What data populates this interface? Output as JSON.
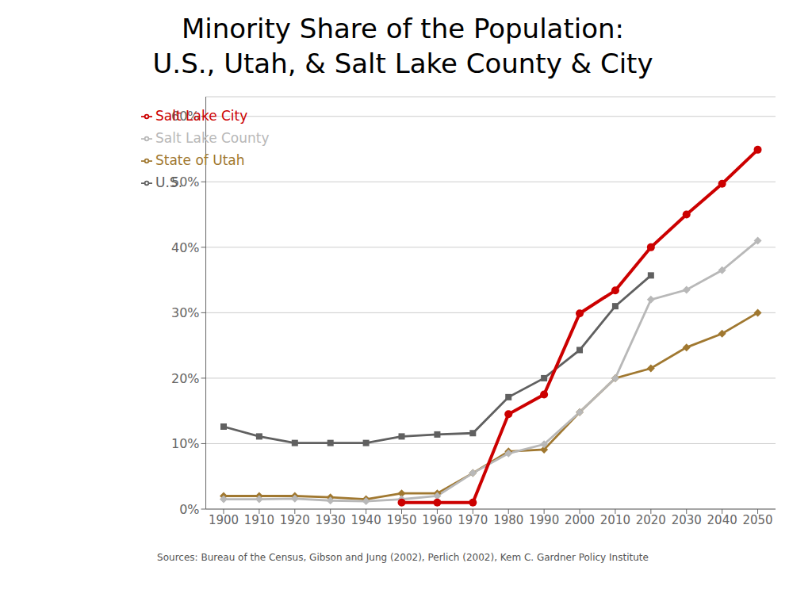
{
  "chart_data": {
    "type": "line",
    "title": "Minority Share of the Population:",
    "subtitle": "U.S., Utah, & Salt Lake County & City",
    "annotations": [
      "Sources: Bureau of the Census, Gibson and Jung (2002), Perlich (2002), Kem C. Gardner Policy Institute"
    ],
    "x": [
      1900,
      1910,
      1920,
      1930,
      1940,
      1950,
      1960,
      1970,
      1980,
      1990,
      2000,
      2010,
      2020,
      2030,
      2040,
      2050
    ],
    "series": [
      {
        "name": "U.S.",
        "color": "#606060",
        "marker": "square",
        "values": [
          0.126,
          0.111,
          0.101,
          0.101,
          0.101,
          0.111,
          0.114,
          0.116,
          0.171,
          0.2,
          0.243,
          0.31,
          0.357,
          null,
          null,
          null
        ]
      },
      {
        "name": "State of Utah",
        "color": "#a07830",
        "marker": "diamond",
        "values": [
          0.02,
          0.02,
          0.02,
          0.018,
          0.015,
          0.024,
          0.024,
          0.055,
          0.088,
          0.091,
          0.148,
          0.2,
          0.215,
          0.247,
          0.268,
          0.3
        ]
      },
      {
        "name": "Salt Lake County",
        "color": "#b8b8b8",
        "marker": "diamond",
        "values": [
          0.015,
          0.015,
          0.016,
          0.013,
          0.012,
          0.015,
          0.02,
          0.055,
          0.085,
          0.099,
          0.148,
          0.2,
          0.32,
          0.335,
          0.365,
          0.41
        ]
      },
      {
        "name": "Salt Lake City",
        "color": "#cc0000",
        "marker": "circle",
        "values": [
          null,
          null,
          null,
          null,
          null,
          0.01,
          0.01,
          0.01,
          0.145,
          0.175,
          0.299,
          0.334,
          0.4,
          0.45,
          0.497,
          0.549
        ]
      }
    ],
    "xlim": [
      1895,
      2055
    ],
    "xticks": [
      1900,
      1910,
      1920,
      1930,
      1940,
      1950,
      1960,
      1970,
      1980,
      1990,
      2000,
      2010,
      2020,
      2030,
      2040,
      2050
    ],
    "ylim": [
      0,
      0.63
    ],
    "yticks": [
      {
        "value": 0.0,
        "label": "0%"
      },
      {
        "value": 0.1,
        "label": "10%"
      },
      {
        "value": 0.2,
        "label": "20%"
      },
      {
        "value": 0.3,
        "label": "30%"
      },
      {
        "value": 0.4,
        "label": "40%"
      },
      {
        "value": 0.5,
        "label": "50%"
      },
      {
        "value": 0.6,
        "label": "60%"
      }
    ],
    "grid": true,
    "legend": "upper left"
  }
}
